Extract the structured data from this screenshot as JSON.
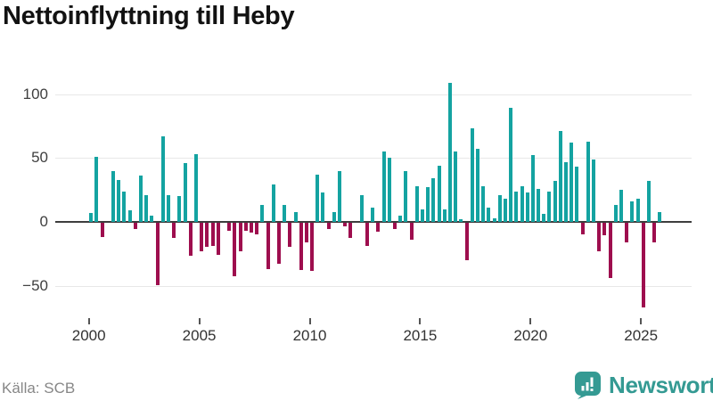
{
  "title": "Nettoinflyttning till Heby",
  "source": "Källa: SCB",
  "branding": {
    "name": "Newsworthy",
    "icon": "newsworthy-speech-bubble-chart-icon",
    "color": "#349a93"
  },
  "chart_data": {
    "type": "bar",
    "title": "Nettoinflyttning till Heby",
    "frequency": "quarterly",
    "x_start": {
      "year": 2000,
      "quarter": 1
    },
    "series": [
      {
        "name": "Nettoinflyttning",
        "values": [
          7,
          51,
          -11,
          0,
          40,
          33,
          24,
          9,
          -5,
          36,
          21,
          5,
          -49,
          67,
          21,
          -12,
          20,
          46,
          -26,
          53,
          -22,
          -19,
          -18,
          -25,
          0,
          -6,
          -42,
          -22,
          -6,
          -8,
          -9,
          13,
          -36,
          29,
          -32,
          13,
          -19,
          8,
          -37,
          -15,
          -38,
          37,
          23,
          -5,
          8,
          40,
          -3,
          -12,
          0,
          21,
          -18,
          11,
          -7,
          55,
          50,
          -5,
          5,
          40,
          -13,
          28,
          10,
          27,
          34,
          44,
          10,
          109,
          55,
          2,
          -29,
          73,
          57,
          28,
          11,
          3,
          21,
          18,
          89,
          24,
          28,
          23,
          52,
          26,
          6,
          24,
          32,
          71,
          47,
          62,
          43,
          -9,
          63,
          49,
          -22,
          -10,
          -43,
          13,
          25,
          -15,
          16,
          18,
          -66,
          32,
          -15,
          8
        ]
      }
    ],
    "x_tick_years": [
      2000,
      2005,
      2010,
      2015,
      2020,
      2025
    ],
    "y_ticks": [
      {
        "value": 100,
        "label": "100"
      },
      {
        "value": 50,
        "label": "50"
      },
      {
        "value": 0,
        "label": "0"
      },
      {
        "value": -50,
        "label": "−50"
      }
    ],
    "ylim": [
      -75,
      115
    ],
    "xlabel": "",
    "ylabel": "",
    "grid": "horizontal",
    "legend": "none",
    "colors": {
      "positive": "#14a3a1",
      "negative": "#9e0e4e",
      "gridline": "#e8e8e8",
      "zero_line": "#3d3d3d"
    }
  }
}
